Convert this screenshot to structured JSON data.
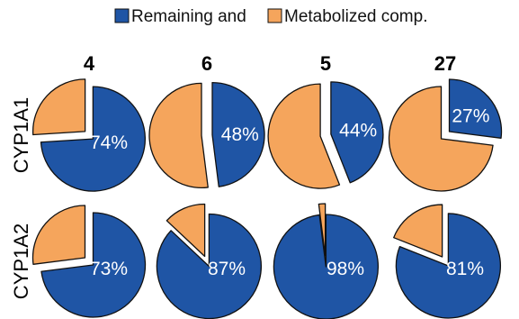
{
  "chart_data": {
    "type": "pie",
    "legend": {
      "placement": "top",
      "entries": [
        {
          "name": "Remaining and",
          "color": "#1f55a5"
        },
        {
          "name": "Metabolized comp.",
          "color": "#f5a55c"
        }
      ]
    },
    "columns": [
      "4",
      "6",
      "5",
      "27"
    ],
    "rows": [
      "CYP1A1",
      "CYP1A2"
    ],
    "slice_labels": [
      "Remaining and",
      "Metabolized comp."
    ],
    "pies": [
      {
        "row": "CYP1A1",
        "column": "4",
        "remaining": 74,
        "metabolized": 26,
        "label": "74%"
      },
      {
        "row": "CYP1A1",
        "column": "6",
        "remaining": 48,
        "metabolized": 52,
        "label": "48%"
      },
      {
        "row": "CYP1A1",
        "column": "5",
        "remaining": 44,
        "metabolized": 56,
        "label": "44%"
      },
      {
        "row": "CYP1A1",
        "column": "27",
        "remaining": 27,
        "metabolized": 73,
        "label": "27%"
      },
      {
        "row": "CYP1A2",
        "column": "4",
        "remaining": 73,
        "metabolized": 27,
        "label": "73%"
      },
      {
        "row": "CYP1A2",
        "column": "6",
        "remaining": 87,
        "metabolized": 13,
        "label": "87%"
      },
      {
        "row": "CYP1A2",
        "column": "5",
        "remaining": 98,
        "metabolized": 2,
        "label": "98%"
      },
      {
        "row": "CYP1A2",
        "column": "27",
        "remaining": 81,
        "metabolized": 19,
        "label": "81%"
      }
    ]
  }
}
